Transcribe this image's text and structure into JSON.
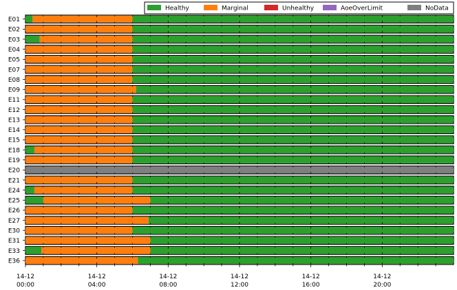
{
  "chart_data": {
    "type": "bar",
    "orientation": "horizontal",
    "stacked": true,
    "x_unit": "hours",
    "xlim": [
      0,
      24
    ],
    "x_ticks": [
      {
        "value": 0,
        "line1": "14-12",
        "line2": "00:00"
      },
      {
        "value": 4,
        "line1": "14-12",
        "line2": "04:00"
      },
      {
        "value": 8,
        "line1": "14-12",
        "line2": "08:00"
      },
      {
        "value": 12,
        "line1": "14-12",
        "line2": "12:00"
      },
      {
        "value": 16,
        "line1": "14-12",
        "line2": "16:00"
      },
      {
        "value": 20,
        "line1": "14-12",
        "line2": "20:00"
      }
    ],
    "legend_position": "top-right",
    "legend": [
      {
        "label": "Healthy",
        "color": "#2ca02c"
      },
      {
        "label": "Marginal",
        "color": "#ff7f0e"
      },
      {
        "label": "Unhealthy",
        "color": "#d62728"
      },
      {
        "label": "AoeOverLimit",
        "color": "#9467bd"
      },
      {
        "label": "NoData",
        "color": "#7f7f7f"
      }
    ],
    "rows": [
      {
        "label": "E01",
        "segments": [
          {
            "status": "Healthy",
            "start": 0,
            "end": 0.4
          },
          {
            "status": "Marginal",
            "start": 0.4,
            "end": 6.0
          },
          {
            "status": "Healthy",
            "start": 6.0,
            "end": 24
          }
        ]
      },
      {
        "label": "E02",
        "segments": [
          {
            "status": "Marginal",
            "start": 0,
            "end": 6.0
          },
          {
            "status": "Healthy",
            "start": 6.0,
            "end": 24
          }
        ]
      },
      {
        "label": "E03",
        "segments": [
          {
            "status": "Healthy",
            "start": 0,
            "end": 0.8
          },
          {
            "status": "Marginal",
            "start": 0.8,
            "end": 6.0
          },
          {
            "status": "Healthy",
            "start": 6.0,
            "end": 24
          }
        ]
      },
      {
        "label": "E04",
        "segments": [
          {
            "status": "Marginal",
            "start": 0,
            "end": 6.0
          },
          {
            "status": "Healthy",
            "start": 6.0,
            "end": 24
          }
        ]
      },
      {
        "label": "E05",
        "segments": [
          {
            "status": "Marginal",
            "start": 0,
            "end": 6.0
          },
          {
            "status": "Healthy",
            "start": 6.0,
            "end": 24
          }
        ]
      },
      {
        "label": "E07",
        "segments": [
          {
            "status": "Marginal",
            "start": 0,
            "end": 6.0
          },
          {
            "status": "Healthy",
            "start": 6.0,
            "end": 24
          }
        ]
      },
      {
        "label": "E08",
        "segments": [
          {
            "status": "Marginal",
            "start": 0,
            "end": 6.0
          },
          {
            "status": "Healthy",
            "start": 6.0,
            "end": 24
          }
        ]
      },
      {
        "label": "E09",
        "segments": [
          {
            "status": "Marginal",
            "start": 0,
            "end": 6.2
          },
          {
            "status": "Healthy",
            "start": 6.2,
            "end": 24
          }
        ]
      },
      {
        "label": "E11",
        "segments": [
          {
            "status": "Marginal",
            "start": 0,
            "end": 6.0
          },
          {
            "status": "Healthy",
            "start": 6.0,
            "end": 24
          }
        ]
      },
      {
        "label": "E12",
        "segments": [
          {
            "status": "Marginal",
            "start": 0,
            "end": 6.0
          },
          {
            "status": "Healthy",
            "start": 6.0,
            "end": 24
          }
        ]
      },
      {
        "label": "E13",
        "segments": [
          {
            "status": "Marginal",
            "start": 0,
            "end": 6.0
          },
          {
            "status": "Healthy",
            "start": 6.0,
            "end": 24
          }
        ]
      },
      {
        "label": "E14",
        "segments": [
          {
            "status": "Marginal",
            "start": 0,
            "end": 6.0
          },
          {
            "status": "Healthy",
            "start": 6.0,
            "end": 24
          }
        ]
      },
      {
        "label": "E15",
        "segments": [
          {
            "status": "Marginal",
            "start": 0,
            "end": 6.0
          },
          {
            "status": "Healthy",
            "start": 6.0,
            "end": 24
          }
        ]
      },
      {
        "label": "E18",
        "segments": [
          {
            "status": "Healthy",
            "start": 0,
            "end": 0.5
          },
          {
            "status": "Marginal",
            "start": 0.5,
            "end": 6.0
          },
          {
            "status": "Healthy",
            "start": 6.0,
            "end": 24
          }
        ]
      },
      {
        "label": "E19",
        "segments": [
          {
            "status": "Marginal",
            "start": 0,
            "end": 6.0
          },
          {
            "status": "Healthy",
            "start": 6.0,
            "end": 24
          }
        ]
      },
      {
        "label": "E20",
        "segments": [
          {
            "status": "NoData",
            "start": 0,
            "end": 24
          }
        ]
      },
      {
        "label": "E21",
        "segments": [
          {
            "status": "Marginal",
            "start": 0,
            "end": 6.0
          },
          {
            "status": "Healthy",
            "start": 6.0,
            "end": 24
          }
        ]
      },
      {
        "label": "E24",
        "segments": [
          {
            "status": "Healthy",
            "start": 0,
            "end": 0.5
          },
          {
            "status": "Marginal",
            "start": 0.5,
            "end": 6.0
          },
          {
            "status": "Healthy",
            "start": 6.0,
            "end": 24
          }
        ]
      },
      {
        "label": "E25",
        "segments": [
          {
            "status": "Healthy",
            "start": 0,
            "end": 1.0
          },
          {
            "status": "Marginal",
            "start": 1.0,
            "end": 7.0
          },
          {
            "status": "Healthy",
            "start": 7.0,
            "end": 24
          }
        ]
      },
      {
        "label": "E26",
        "segments": [
          {
            "status": "Marginal",
            "start": 0,
            "end": 6.0
          },
          {
            "status": "Healthy",
            "start": 6.0,
            "end": 24
          }
        ]
      },
      {
        "label": "E27",
        "segments": [
          {
            "status": "Marginal",
            "start": 0,
            "end": 6.9
          },
          {
            "status": "Healthy",
            "start": 6.9,
            "end": 24
          }
        ]
      },
      {
        "label": "E30",
        "segments": [
          {
            "status": "Marginal",
            "start": 0,
            "end": 6.0
          },
          {
            "status": "Healthy",
            "start": 6.0,
            "end": 24
          }
        ]
      },
      {
        "label": "E31",
        "segments": [
          {
            "status": "Marginal",
            "start": 0,
            "end": 7.0
          },
          {
            "status": "Healthy",
            "start": 7.0,
            "end": 24
          }
        ]
      },
      {
        "label": "E33",
        "segments": [
          {
            "status": "Healthy",
            "start": 0,
            "end": 0.9
          },
          {
            "status": "Marginal",
            "start": 0.9,
            "end": 7.0
          },
          {
            "status": "Healthy",
            "start": 7.0,
            "end": 24
          }
        ]
      },
      {
        "label": "E36",
        "segments": [
          {
            "status": "Marginal",
            "start": 0,
            "end": 6.3
          },
          {
            "status": "Healthy",
            "start": 6.3,
            "end": 24
          }
        ]
      }
    ]
  }
}
